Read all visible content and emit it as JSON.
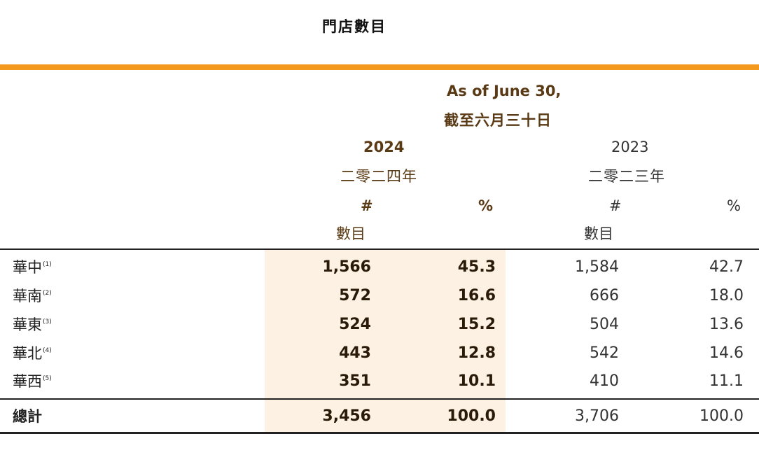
{
  "title": "門店數目",
  "colors": {
    "accent_bar": "#f39a1e",
    "shade": "#fdf1e4"
  },
  "header": {
    "as_of_en": "As of June 30,",
    "as_of_zh": "截至六月三十日",
    "year_2024": "2024",
    "year_2024_zh": "二零二四年",
    "year_2023": "2023",
    "year_2023_zh": "二零二三年",
    "count_symbol": "#",
    "pct_symbol": "%",
    "count_zh": "數目"
  },
  "rows": [
    {
      "label": "華中",
      "note": "(1)",
      "c2024": "1,566",
      "p2024": "45.3",
      "c2023": "1,584",
      "p2023": "42.7"
    },
    {
      "label": "華南",
      "note": "(2)",
      "c2024": "572",
      "p2024": "16.6",
      "c2023": "666",
      "p2023": "18.0"
    },
    {
      "label": "華東",
      "note": "(3)",
      "c2024": "524",
      "p2024": "15.2",
      "c2023": "504",
      "p2023": "13.6"
    },
    {
      "label": "華北",
      "note": "(4)",
      "c2024": "443",
      "p2024": "12.8",
      "c2023": "542",
      "p2023": "14.6"
    },
    {
      "label": "華西",
      "note": "(5)",
      "c2024": "351",
      "p2024": "10.1",
      "c2023": "410",
      "p2023": "11.1"
    }
  ],
  "total": {
    "label": "總計",
    "c2024": "3,456",
    "p2024": "100.0",
    "c2023": "3,706",
    "p2023": "100.0"
  }
}
